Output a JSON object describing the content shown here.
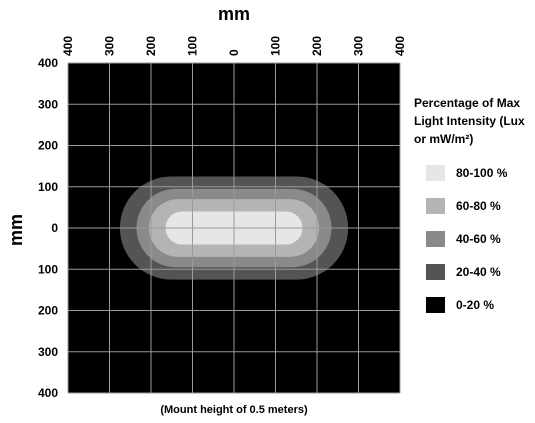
{
  "chart_data": {
    "type": "heatmap",
    "title": "",
    "xlabel": "mm",
    "ylabel": "mm",
    "x_tick_labels": [
      "400",
      "300",
      "200",
      "100",
      "0",
      "100",
      "200",
      "300",
      "400"
    ],
    "y_tick_labels": [
      "400",
      "300",
      "200",
      "100",
      "0",
      "100",
      "200",
      "300",
      "400"
    ],
    "xlim": [
      -400,
      400
    ],
    "ylim": [
      -400,
      400
    ],
    "grid": true,
    "background_color": "#000000",
    "grid_color": "#9a9a9a",
    "legend": {
      "title": "Percentage of Max Light Intensity (Lux or mW/m²)",
      "placement": "right",
      "items": [
        {
          "label": "80-100 %",
          "color": "#e6e6e6"
        },
        {
          "label": "60-80 %",
          "color": "#b4b4b4"
        },
        {
          "label": "40-60 %",
          "color": "#8a8a8a"
        },
        {
          "label": "20-40 %",
          "color": "#545454"
        },
        {
          "label": "0-20 %",
          "color": "#000000"
        }
      ]
    },
    "contours": [
      {
        "level": "20-40 %",
        "color": "#545454",
        "half_width_mm": 275,
        "half_height_mm": 125
      },
      {
        "level": "40-60 %",
        "color": "#8a8a8a",
        "half_width_mm": 235,
        "half_height_mm": 95
      },
      {
        "level": "60-80 %",
        "color": "#b4b4b4",
        "half_width_mm": 205,
        "half_height_mm": 70
      },
      {
        "level": "80-100 %",
        "color": "#e6e6e6",
        "half_width_mm": 165,
        "half_height_mm": 40
      }
    ],
    "note": "(Mount height of 0.5 meters)"
  }
}
